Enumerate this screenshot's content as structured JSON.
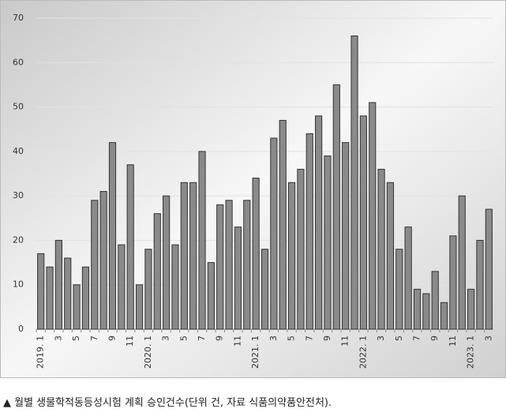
{
  "chart_data": {
    "type": "bar",
    "categories": [
      "2019. 1",
      null,
      "3",
      null,
      "5",
      null,
      "7",
      null,
      "9",
      null,
      "11",
      null,
      "2020. 1",
      null,
      "3",
      null,
      "5",
      null,
      "7",
      null,
      "9",
      null,
      "11",
      null,
      "2021. 1",
      null,
      "3",
      null,
      "5",
      null,
      "7",
      null,
      "9",
      null,
      "11",
      null,
      "2022. 1",
      null,
      "3",
      null,
      "5",
      null,
      "7",
      null,
      "9",
      null,
      "11",
      null,
      "2023. 1",
      null,
      "3"
    ],
    "values": [
      17,
      14,
      20,
      16,
      10,
      14,
      29,
      31,
      42,
      19,
      37,
      10,
      18,
      26,
      30,
      19,
      33,
      33,
      40,
      15,
      28,
      29,
      23,
      29,
      34,
      18,
      43,
      47,
      33,
      36,
      44,
      48,
      39,
      55,
      42,
      66,
      48,
      51,
      36,
      33,
      18,
      23,
      9,
      8,
      13,
      6,
      21,
      30,
      9,
      20,
      27
    ],
    "color": "#8a8a8a",
    "ylim": [
      0,
      70
    ],
    "yticks": [
      0,
      10,
      20,
      30,
      40,
      50,
      60,
      70
    ],
    "grid": true
  },
  "caption": "▲ 월별 생물학적동등성시험 계획 승인건수(단위 건, 자료 식품의약품안전처)."
}
